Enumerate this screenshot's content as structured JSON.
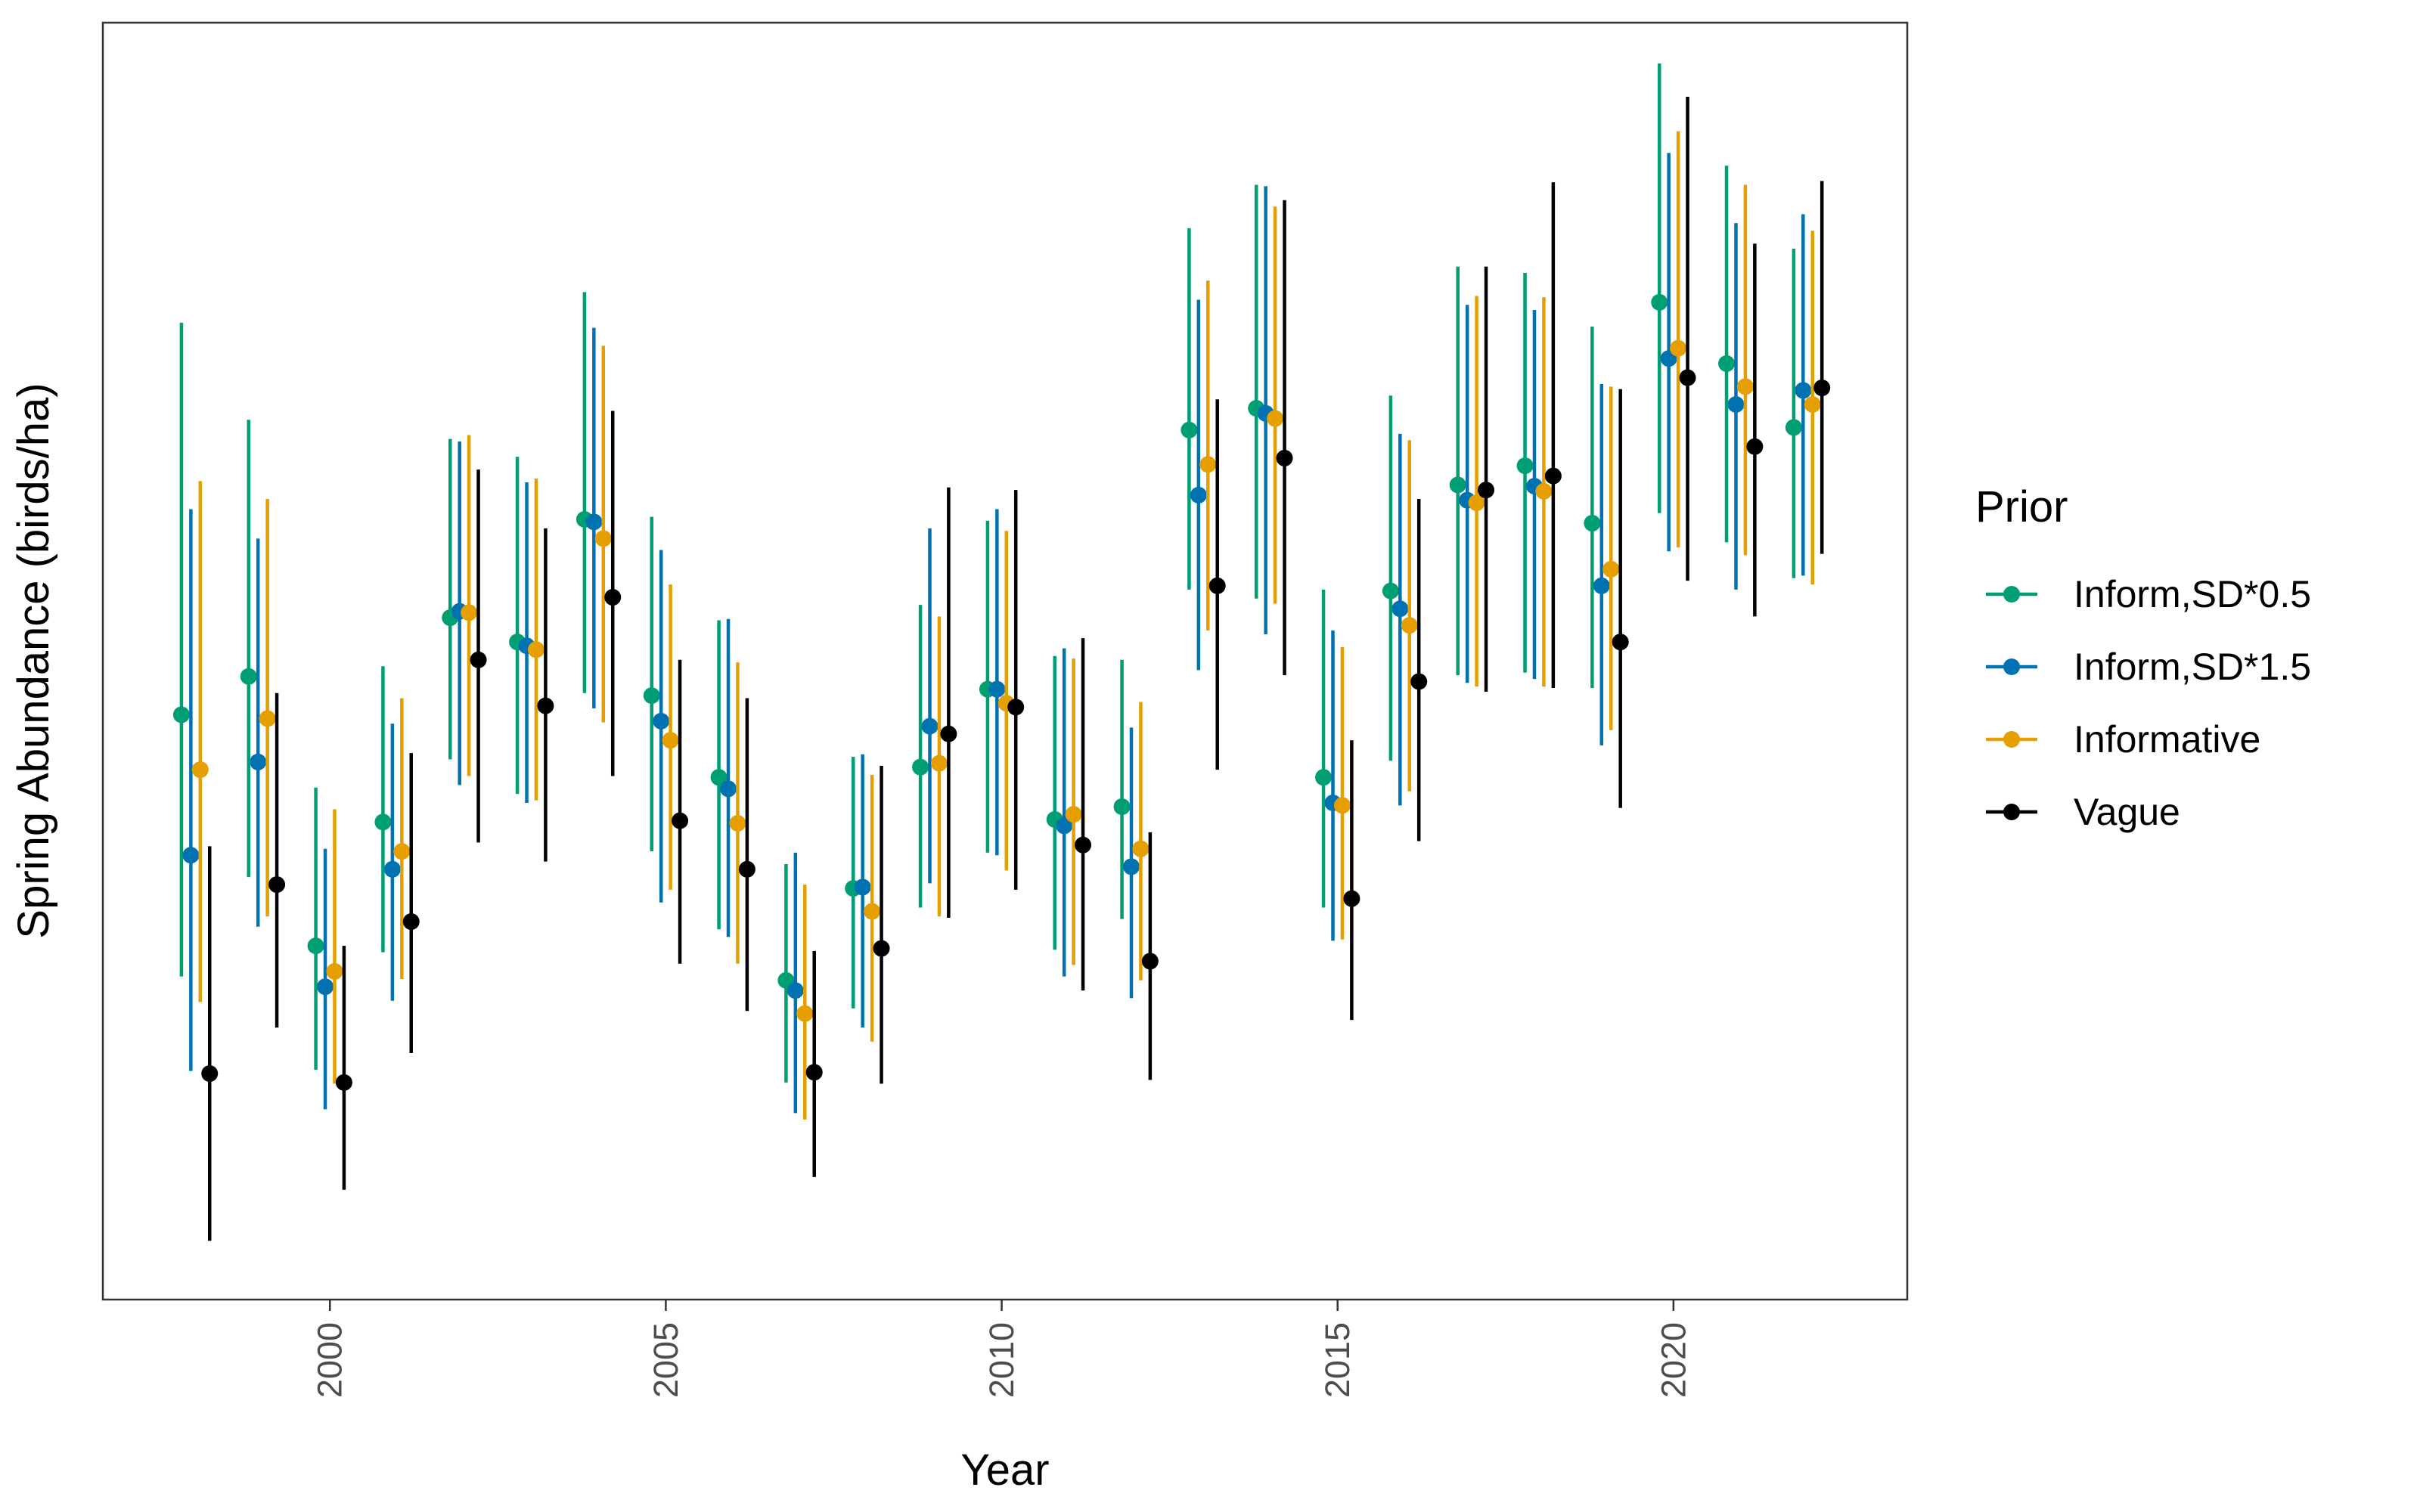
{
  "chart_data": {
    "type": "scatter",
    "title": "",
    "xlabel": "Year",
    "ylabel": "Spring Abundance (birds/ha)",
    "xlim": [
      1996.62,
      2023.48
    ],
    "ylim": [
      0,
      100
    ],
    "x_ticks": [
      "2000",
      "2005",
      "2010",
      "2015",
      "2020"
    ],
    "y_ticks_shown": false,
    "grid": false,
    "error_bars": true,
    "legend": {
      "title": "Prior",
      "position": "right"
    },
    "series": [
      {
        "name": "Inform,SD*0.5",
        "color": "#009E73",
        "offset": -0.21,
        "points": [
          {
            "x": 1998,
            "y": 45.8,
            "lo": 25.3,
            "hi": 76.5
          },
          {
            "x": 1999,
            "y": 48.8,
            "lo": 33.1,
            "hi": 68.9
          },
          {
            "x": 2000,
            "y": 27.7,
            "lo": 18.0,
            "hi": 40.1
          },
          {
            "x": 2001,
            "y": 37.4,
            "lo": 27.2,
            "hi": 49.6
          },
          {
            "x": 2002,
            "y": 53.4,
            "lo": 42.3,
            "hi": 67.4
          },
          {
            "x": 2003,
            "y": 51.5,
            "lo": 39.6,
            "hi": 66.0
          },
          {
            "x": 2004,
            "y": 61.1,
            "lo": 47.5,
            "hi": 78.9
          },
          {
            "x": 2005,
            "y": 47.3,
            "lo": 35.1,
            "hi": 61.3
          },
          {
            "x": 2006,
            "y": 40.9,
            "lo": 29.0,
            "hi": 53.2
          },
          {
            "x": 2007,
            "y": 25.0,
            "lo": 17.0,
            "hi": 34.1
          },
          {
            "x": 2008,
            "y": 32.2,
            "lo": 22.8,
            "hi": 42.5
          },
          {
            "x": 2009,
            "y": 41.7,
            "lo": 30.7,
            "hi": 54.4
          },
          {
            "x": 2010,
            "y": 47.8,
            "lo": 35.0,
            "hi": 61.0
          },
          {
            "x": 2011,
            "y": 37.6,
            "lo": 27.4,
            "hi": 50.4
          },
          {
            "x": 2012,
            "y": 38.6,
            "lo": 29.8,
            "hi": 50.1
          },
          {
            "x": 2013,
            "y": 68.1,
            "lo": 55.6,
            "hi": 83.9
          },
          {
            "x": 2014,
            "y": 69.8,
            "lo": 54.9,
            "hi": 87.3
          },
          {
            "x": 2015,
            "y": 40.9,
            "lo": 30.7,
            "hi": 55.6
          },
          {
            "x": 2016,
            "y": 55.5,
            "lo": 42.2,
            "hi": 70.8
          },
          {
            "x": 2017,
            "y": 63.8,
            "lo": 48.9,
            "hi": 80.9
          },
          {
            "x": 2018,
            "y": 65.3,
            "lo": 49.1,
            "hi": 80.4
          },
          {
            "x": 2019,
            "y": 60.8,
            "lo": 47.9,
            "hi": 76.2
          },
          {
            "x": 2020,
            "y": 78.1,
            "lo": 61.6,
            "hi": 96.8
          },
          {
            "x": 2021,
            "y": 73.3,
            "lo": 59.3,
            "hi": 88.8
          },
          {
            "x": 2022,
            "y": 68.3,
            "lo": 56.5,
            "hi": 82.3
          }
        ]
      },
      {
        "name": "Inform,SD*1.5",
        "color": "#0072B2",
        "offset": -0.07,
        "points": [
          {
            "x": 1998,
            "y": 34.8,
            "lo": 17.9,
            "hi": 61.9
          },
          {
            "x": 1999,
            "y": 42.1,
            "lo": 29.2,
            "hi": 59.6
          },
          {
            "x": 2000,
            "y": 24.5,
            "lo": 14.9,
            "hi": 35.3
          },
          {
            "x": 2001,
            "y": 33.7,
            "lo": 23.4,
            "hi": 45.1
          },
          {
            "x": 2002,
            "y": 53.9,
            "lo": 40.3,
            "hi": 67.2
          },
          {
            "x": 2003,
            "y": 51.2,
            "lo": 38.9,
            "hi": 64.0
          },
          {
            "x": 2004,
            "y": 60.9,
            "lo": 46.3,
            "hi": 76.1
          },
          {
            "x": 2005,
            "y": 45.3,
            "lo": 31.1,
            "hi": 58.7
          },
          {
            "x": 2006,
            "y": 40.0,
            "lo": 28.4,
            "hi": 53.3
          },
          {
            "x": 2007,
            "y": 24.2,
            "lo": 14.6,
            "hi": 35.0
          },
          {
            "x": 2008,
            "y": 32.3,
            "lo": 21.3,
            "hi": 42.7
          },
          {
            "x": 2009,
            "y": 44.9,
            "lo": 32.6,
            "hi": 60.4
          },
          {
            "x": 2010,
            "y": 47.8,
            "lo": 34.8,
            "hi": 61.9
          },
          {
            "x": 2011,
            "y": 37.1,
            "lo": 25.3,
            "hi": 51.0
          },
          {
            "x": 2012,
            "y": 33.9,
            "lo": 23.6,
            "hi": 44.8
          },
          {
            "x": 2013,
            "y": 63.0,
            "lo": 49.3,
            "hi": 78.3
          },
          {
            "x": 2014,
            "y": 69.4,
            "lo": 52.1,
            "hi": 87.2
          },
          {
            "x": 2015,
            "y": 38.9,
            "lo": 28.1,
            "hi": 52.4
          },
          {
            "x": 2016,
            "y": 54.1,
            "lo": 38.7,
            "hi": 67.8
          },
          {
            "x": 2017,
            "y": 62.6,
            "lo": 48.3,
            "hi": 77.9
          },
          {
            "x": 2018,
            "y": 63.7,
            "lo": 48.6,
            "hi": 77.5
          },
          {
            "x": 2019,
            "y": 55.9,
            "lo": 43.4,
            "hi": 71.7
          },
          {
            "x": 2020,
            "y": 73.7,
            "lo": 58.6,
            "hi": 89.8
          },
          {
            "x": 2021,
            "y": 70.1,
            "lo": 55.6,
            "hi": 84.3
          },
          {
            "x": 2022,
            "y": 71.2,
            "lo": 56.7,
            "hi": 85.0
          }
        ]
      },
      {
        "name": "Informative",
        "color": "#E69F00",
        "offset": 0.07,
        "points": [
          {
            "x": 1998,
            "y": 41.5,
            "lo": 23.3,
            "hi": 64.1
          },
          {
            "x": 1999,
            "y": 45.5,
            "lo": 30.0,
            "hi": 62.7
          },
          {
            "x": 2000,
            "y": 25.7,
            "lo": 16.9,
            "hi": 38.4
          },
          {
            "x": 2001,
            "y": 35.1,
            "lo": 25.1,
            "hi": 47.1
          },
          {
            "x": 2002,
            "y": 53.8,
            "lo": 41.0,
            "hi": 67.7
          },
          {
            "x": 2003,
            "y": 50.9,
            "lo": 39.1,
            "hi": 64.3
          },
          {
            "x": 2004,
            "y": 59.6,
            "lo": 45.2,
            "hi": 74.7
          },
          {
            "x": 2005,
            "y": 43.8,
            "lo": 32.1,
            "hi": 56.0
          },
          {
            "x": 2006,
            "y": 37.3,
            "lo": 26.3,
            "hi": 49.9
          },
          {
            "x": 2007,
            "y": 22.4,
            "lo": 14.1,
            "hi": 32.5
          },
          {
            "x": 2008,
            "y": 30.4,
            "lo": 20.2,
            "hi": 41.1
          },
          {
            "x": 2009,
            "y": 42.0,
            "lo": 30.0,
            "hi": 53.5
          },
          {
            "x": 2010,
            "y": 46.7,
            "lo": 33.6,
            "hi": 60.2
          },
          {
            "x": 2011,
            "y": 38.0,
            "lo": 26.2,
            "hi": 50.2
          },
          {
            "x": 2012,
            "y": 35.3,
            "lo": 25.0,
            "hi": 46.8
          },
          {
            "x": 2013,
            "y": 65.4,
            "lo": 52.4,
            "hi": 79.8
          },
          {
            "x": 2014,
            "y": 69.0,
            "lo": 54.5,
            "hi": 85.6
          },
          {
            "x": 2015,
            "y": 38.7,
            "lo": 28.2,
            "hi": 51.1
          },
          {
            "x": 2016,
            "y": 52.8,
            "lo": 39.8,
            "hi": 67.3
          },
          {
            "x": 2017,
            "y": 62.4,
            "lo": 48.0,
            "hi": 78.6
          },
          {
            "x": 2018,
            "y": 63.3,
            "lo": 48.0,
            "hi": 78.5
          },
          {
            "x": 2019,
            "y": 57.2,
            "lo": 44.6,
            "hi": 71.5
          },
          {
            "x": 2020,
            "y": 74.5,
            "lo": 58.9,
            "hi": 91.5
          },
          {
            "x": 2021,
            "y": 71.5,
            "lo": 58.3,
            "hi": 87.3
          },
          {
            "x": 2022,
            "y": 70.1,
            "lo": 56.0,
            "hi": 83.7
          }
        ]
      },
      {
        "name": "Vague",
        "color": "#000000",
        "offset": 0.21,
        "points": [
          {
            "x": 1998,
            "y": 17.7,
            "lo": 4.6,
            "hi": 35.5
          },
          {
            "x": 1999,
            "y": 32.5,
            "lo": 21.3,
            "hi": 47.5
          },
          {
            "x": 2000,
            "y": 17.0,
            "lo": 8.6,
            "hi": 27.7
          },
          {
            "x": 2001,
            "y": 29.6,
            "lo": 19.3,
            "hi": 42.8
          },
          {
            "x": 2002,
            "y": 50.1,
            "lo": 35.8,
            "hi": 65.0
          },
          {
            "x": 2003,
            "y": 46.5,
            "lo": 34.3,
            "hi": 60.4
          },
          {
            "x": 2004,
            "y": 55.0,
            "lo": 41.0,
            "hi": 69.6
          },
          {
            "x": 2005,
            "y": 37.5,
            "lo": 26.3,
            "hi": 50.1
          },
          {
            "x": 2006,
            "y": 33.7,
            "lo": 22.6,
            "hi": 47.1
          },
          {
            "x": 2007,
            "y": 17.8,
            "lo": 9.6,
            "hi": 27.3
          },
          {
            "x": 2008,
            "y": 27.5,
            "lo": 16.9,
            "hi": 41.8
          },
          {
            "x": 2009,
            "y": 44.3,
            "lo": 29.9,
            "hi": 63.6
          },
          {
            "x": 2010,
            "y": 46.4,
            "lo": 32.1,
            "hi": 63.4
          },
          {
            "x": 2011,
            "y": 35.6,
            "lo": 24.2,
            "hi": 51.8
          },
          {
            "x": 2012,
            "y": 26.5,
            "lo": 17.2,
            "hi": 36.6
          },
          {
            "x": 2013,
            "y": 55.9,
            "lo": 41.5,
            "hi": 70.5
          },
          {
            "x": 2014,
            "y": 65.9,
            "lo": 48.9,
            "hi": 86.1
          },
          {
            "x": 2015,
            "y": 31.4,
            "lo": 21.9,
            "hi": 43.8
          },
          {
            "x": 2016,
            "y": 48.4,
            "lo": 35.9,
            "hi": 62.7
          },
          {
            "x": 2017,
            "y": 63.4,
            "lo": 47.6,
            "hi": 80.9
          },
          {
            "x": 2018,
            "y": 64.5,
            "lo": 47.9,
            "hi": 87.5
          },
          {
            "x": 2019,
            "y": 51.5,
            "lo": 38.5,
            "hi": 71.3
          },
          {
            "x": 2020,
            "y": 72.2,
            "lo": 56.3,
            "hi": 94.2
          },
          {
            "x": 2021,
            "y": 66.8,
            "lo": 53.5,
            "hi": 82.7
          },
          {
            "x": 2022,
            "y": 71.4,
            "lo": 58.4,
            "hi": 87.6
          }
        ]
      }
    ]
  }
}
